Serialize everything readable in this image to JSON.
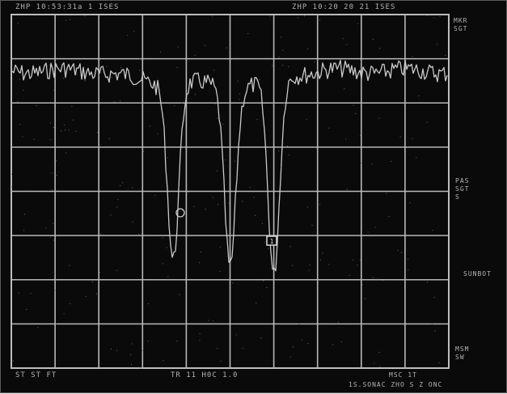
{
  "header": {
    "left": "ZHP  10:53:31a  1   ISES",
    "right": "ZHP  10:20  20 21    ISES"
  },
  "right_panel": {
    "top_label": "MKR\nSGT",
    "mid_label": "PAS\nSGT\nS",
    "mid2_label": "SUNBOT",
    "bottom_label": "MSM\nSW"
  },
  "footer": {
    "left": "ST  ST   FT",
    "center": "TR  11 H0C  1.0",
    "right_top": "MSC   1T",
    "right_bottom": "1S.SONAC  ZHO   S  Z ONC"
  },
  "marker": {
    "label": "1"
  },
  "trace": {
    "color": "#c9c9c9",
    "dips": [
      {
        "position": 0.37,
        "depth": 0.8
      },
      {
        "position": 0.5,
        "depth": 0.82
      },
      {
        "position": 0.6,
        "depth": 0.9
      }
    ]
  }
}
